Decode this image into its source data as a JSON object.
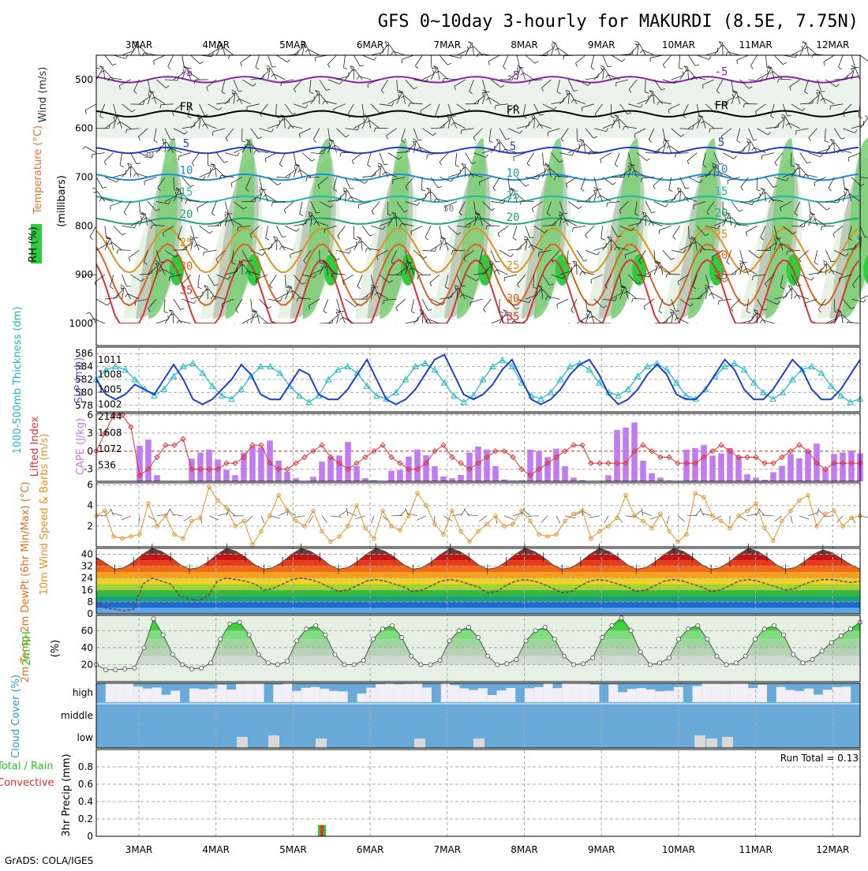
{
  "title": "GFS 0~10day 3-hourly for MAKURDI (8.5E, 7.75N)",
  "footer": "GrADS: COLA/IGES",
  "dates": [
    "3MAR",
    "4MAR",
    "5MAR",
    "6MAR",
    "7MAR",
    "8MAR",
    "9MAR",
    "10MAR",
    "11MAR",
    "12MAR"
  ],
  "colors": {
    "grid": "#aaaaaa",
    "rh_fill": "#2ecc40",
    "cape": "#c07cf0",
    "lifted_index": "#e03030",
    "slp": "#1f3fd0",
    "thickness": "#20b8c8",
    "wind10": "#e89020",
    "rh2m": "#22cc22",
    "cloud": "#6aaad8",
    "cloud_clear": "#f2f0f6",
    "precip_total": "#22cc22",
    "precip_conv": "#e03030"
  },
  "chart_data": [
    {
      "type": "heatmap",
      "panel": "upper-air cross-section",
      "ylabels": [
        "Wind (m/s)",
        "Temperature (°C)",
        "RH (%)",
        "(millibars)"
      ],
      "y_ticks": [
        500,
        600,
        700,
        800,
        900,
        1000
      ],
      "ylim": [
        450,
        1000
      ],
      "isotherms": [
        {
          "label": "-5",
          "level": 500,
          "color": "#8e1fb0"
        },
        {
          "label": "FR",
          "level": 570,
          "color": "#000000"
        },
        {
          "label": "5",
          "level": 645,
          "color": "#1f3fd0"
        },
        {
          "label": "10",
          "level": 700,
          "color": "#1d8fd8"
        },
        {
          "label": "15",
          "level": 745,
          "color": "#20b8a8"
        },
        {
          "label": "20",
          "level": 790,
          "color": "#1fa870"
        },
        {
          "label": "25",
          "level": 850,
          "color": "#e09020"
        },
        {
          "label": "30",
          "level": 900,
          "color": "#e06020"
        },
        {
          "label": "35",
          "level": 950,
          "color": "#e03030"
        }
      ],
      "rh_labels": [
        "30",
        "50"
      ]
    },
    {
      "type": "line",
      "panel": "thickness-slp",
      "ylabel_left": "1000-500mb Thickness (dm)",
      "ylabel_right": "SLP (mb)",
      "y_ticks_left": [
        578,
        580,
        582,
        584,
        586
      ],
      "y_ticks_right": [
        1002,
        1005,
        1008,
        1011
      ],
      "series": [
        {
          "name": "SLP (mb)",
          "values": [
            1007,
            1004,
            1003,
            1004,
            1006,
            1005,
            1004,
            1007,
            1010,
            1007,
            1003,
            1002,
            1003,
            1005,
            1007,
            1010,
            1008,
            1004,
            1003,
            1003,
            1006,
            1009,
            1008,
            1004,
            1003,
            1003,
            1005,
            1008,
            1011,
            1007,
            1003,
            1002,
            1003,
            1005,
            1008,
            1011,
            1012,
            1008,
            1004,
            1003,
            1004,
            1006,
            1009,
            1011,
            1007,
            1003,
            1002,
            1003,
            1005,
            1008,
            1010,
            1011,
            1008,
            1004,
            1002,
            1003,
            1005,
            1008,
            1010,
            1008,
            1004,
            1003,
            1003,
            1005,
            1008,
            1011,
            1009,
            1005,
            1003,
            1003,
            1005,
            1008,
            1011,
            1009,
            1005,
            1003,
            1003,
            1005,
            1008,
            1011
          ]
        },
        {
          "name": "1000-500mb Thickness (dm)",
          "values": [
            582,
            583.5,
            584,
            583.5,
            582,
            580.5,
            579.5,
            580.5,
            582.5,
            584,
            584.5,
            583,
            581,
            579.5,
            579,
            580.5,
            582.5,
            584,
            584,
            583,
            581,
            579.5,
            578.5,
            579.5,
            582,
            583.5,
            584,
            583,
            581,
            579.5,
            579,
            580,
            582,
            584,
            584.5,
            583.5,
            581.5,
            579.5,
            578.5,
            579.5,
            582,
            584,
            585,
            584,
            581.5,
            579.5,
            579,
            580,
            582,
            584,
            584.5,
            583.5,
            581.5,
            580,
            579.5,
            580.5,
            582.5,
            584,
            584.5,
            583.5,
            581.5,
            579.5,
            579,
            580.5,
            582.5,
            584,
            584.5,
            583.5,
            581.5,
            580,
            579,
            580,
            582,
            583.5,
            584,
            583,
            581,
            579.5,
            578.5,
            579
          ]
        }
      ]
    },
    {
      "type": "bar",
      "panel": "cape-lifted-index",
      "ylabel_left": "Lifted Index",
      "ylabel_right": "CAPE (J/kg)",
      "y_ticks_left": [
        -3,
        0,
        3,
        6
      ],
      "y_ticks_right": [
        536,
        1072,
        1608,
        2144
      ],
      "series": [
        {
          "name": "CAPE (J/kg)",
          "values": [
            0,
            0,
            0,
            0,
            0,
            1180,
            1380,
            200,
            0,
            0,
            0,
            750,
            950,
            1050,
            720,
            380,
            200,
            950,
            1150,
            1120,
            1350,
            680,
            320,
            100,
            0,
            150,
            650,
            820,
            850,
            1300,
            500,
            100,
            40,
            0,
            350,
            380,
            820,
            1050,
            860,
            500,
            160,
            100,
            210,
            950,
            1150,
            1050,
            500,
            60,
            20,
            30,
            1050,
            1000,
            800,
            1080,
            500,
            120,
            40,
            0,
            0,
            200,
            1700,
            1780,
            1950,
            680,
            260,
            120,
            30,
            0,
            1050,
            1100,
            1200,
            850,
            920,
            1100,
            820,
            230,
            120,
            50,
            300,
            510,
            900,
            760,
            1020,
            1250,
            400,
            900,
            950,
            1020,
            930
          ]
        },
        {
          "name": "Lifted Index",
          "values": [
            0,
            3,
            6,
            6,
            4,
            -4,
            -3,
            -1,
            1,
            1,
            2,
            -3,
            -3,
            -3,
            -3,
            -2,
            -2,
            -1,
            1,
            1,
            -2,
            -3,
            -3,
            -2,
            -1,
            0,
            1,
            -1,
            -2,
            -3,
            -2,
            -1,
            0,
            1,
            -1,
            -2,
            -3,
            -3,
            -2,
            0,
            1,
            -1,
            -2,
            -3,
            -2,
            -1,
            0,
            0,
            -1,
            -3,
            -4,
            -3,
            -2,
            -1,
            0,
            1,
            1,
            -2,
            -2,
            -2,
            -2,
            -2,
            0,
            1,
            0,
            -1,
            -1,
            -2,
            -2,
            -2,
            -1,
            0,
            1,
            0,
            -1,
            -1,
            -1,
            -2,
            -2,
            -1,
            0,
            1,
            0,
            -2,
            -3,
            -2,
            -2,
            -2,
            -2
          ]
        }
      ]
    },
    {
      "type": "line",
      "panel": "10m-wind",
      "ylabel": "10m Wind Speed & Barbs (m/s)",
      "y_ticks": [
        2,
        4,
        6
      ],
      "ylim": [
        0,
        6
      ],
      "series": [
        {
          "name": "10m Wind Speed",
          "values": [
            3,
            3.5,
            1,
            0.8,
            1,
            1.2,
            4.2,
            2,
            3,
            1.2,
            0.8,
            2.5,
            2.8,
            5.8,
            4.5,
            3.8,
            2,
            2.5,
            0.2,
            1.5,
            3,
            5,
            3.5,
            2.5,
            2,
            3.5,
            1.5,
            0.5,
            1,
            2,
            4,
            1.8,
            0.8,
            3.5,
            2,
            1.6,
            3,
            5.2,
            4,
            2.2,
            1.2,
            3.5,
            1.5,
            0.5,
            1.5,
            2.2,
            3,
            2,
            2.2,
            3.5,
            2.5,
            1.2,
            1,
            1.2,
            2.5,
            3.2,
            3.5,
            0.8,
            1.5,
            2,
            2.8,
            5,
            3,
            2.5,
            1.8,
            3.2,
            1.5,
            0.5,
            1.2,
            5.2,
            4.8,
            3,
            2.5,
            1.8,
            3,
            3.5,
            4.2,
            1.8,
            0.6,
            2.5,
            3.5,
            4.5,
            5,
            2,
            3.2,
            3.5,
            2,
            2.8,
            3
          ]
        }
      ]
    },
    {
      "type": "area",
      "panel": "2m-temperature",
      "ylabel": "2m Temp 2m DewPt (6hr Min/Max) (°C)",
      "y_ticks": [
        0,
        8,
        16,
        24,
        32,
        40
      ],
      "ylim": [
        0,
        44
      ],
      "series": [
        {
          "name": "2m Temp (°C)",
          "values": [
            38,
            34,
            30,
            31,
            35,
            40,
            44,
            42,
            38,
            33,
            30,
            31,
            35,
            40,
            44,
            42,
            38,
            33,
            30,
            31,
            35,
            40,
            44,
            42,
            38,
            33,
            30,
            31,
            35,
            40,
            44,
            42,
            38,
            33,
            30,
            31,
            35,
            40,
            44,
            42,
            38,
            33,
            30,
            31,
            35,
            40,
            44,
            42,
            38,
            33,
            30,
            31,
            35,
            40,
            44,
            42,
            38,
            33,
            30,
            31,
            35,
            40,
            44,
            42,
            38,
            33,
            30,
            31,
            35,
            40,
            44,
            42,
            38,
            33,
            30,
            31,
            35,
            40,
            43,
            41,
            37,
            33,
            30
          ]
        },
        {
          "name": "2m DewPt (°C)",
          "values": [
            8,
            4,
            3,
            2,
            3,
            20,
            24,
            22,
            20,
            12,
            10,
            9,
            12,
            22,
            24,
            23,
            22,
            20,
            16,
            17,
            20,
            23,
            24,
            23,
            21,
            18,
            15,
            16,
            19,
            22,
            23,
            22,
            20,
            18,
            15,
            16,
            19,
            22,
            23,
            22,
            20,
            18,
            14,
            15,
            19,
            22,
            23,
            22,
            20,
            17,
            14,
            15,
            19,
            22,
            23,
            22,
            20,
            18,
            15,
            16,
            19,
            22,
            23,
            22,
            20,
            18,
            15,
            16,
            19,
            22,
            23,
            22,
            20,
            18,
            16,
            17,
            20,
            22,
            23,
            23,
            22,
            21,
            22
          ]
        }
      ]
    },
    {
      "type": "area",
      "panel": "2m-rh",
      "ylabel": "2m RH (%)",
      "y_ticks": [
        20,
        40,
        60
      ],
      "series": [
        {
          "name": "2m RH (%)",
          "values": [
            20,
            14,
            14,
            15,
            16,
            40,
            74,
            55,
            32,
            20,
            15,
            16,
            22,
            50,
            68,
            70,
            55,
            32,
            22,
            20,
            24,
            48,
            62,
            66,
            55,
            32,
            20,
            20,
            25,
            50,
            62,
            66,
            52,
            30,
            20,
            20,
            25,
            48,
            60,
            64,
            52,
            30,
            20,
            21,
            26,
            48,
            60,
            64,
            50,
            30,
            20,
            21,
            28,
            52,
            66,
            75,
            60,
            35,
            20,
            22,
            28,
            50,
            62,
            66,
            50,
            30,
            20,
            22,
            30,
            50,
            62,
            66,
            55,
            32,
            22,
            26,
            36,
            46,
            54,
            62,
            70
          ]
        }
      ]
    },
    {
      "type": "heatmap",
      "panel": "cloud-cover",
      "ylabel": "Cloud Cover (%)",
      "row_labels": [
        "high",
        "middle",
        "low"
      ]
    },
    {
      "type": "bar",
      "panel": "3hr-precip",
      "ylabel": "3hr Precip (mm)",
      "legend": [
        "Total / Rain",
        "Convective"
      ],
      "y_ticks": [
        0,
        0.2,
        0.4,
        0.6,
        0.8
      ],
      "ylim": [
        0,
        1.0
      ],
      "annotation": "Run Total = 0.13",
      "series": [
        {
          "name": "Total / Rain",
          "at_date": "5MAR",
          "offset_days": 0.375,
          "value": 0.13
        },
        {
          "name": "Convective",
          "at_date": "5MAR",
          "offset_days": 0.375,
          "value": 0.13
        }
      ]
    }
  ]
}
